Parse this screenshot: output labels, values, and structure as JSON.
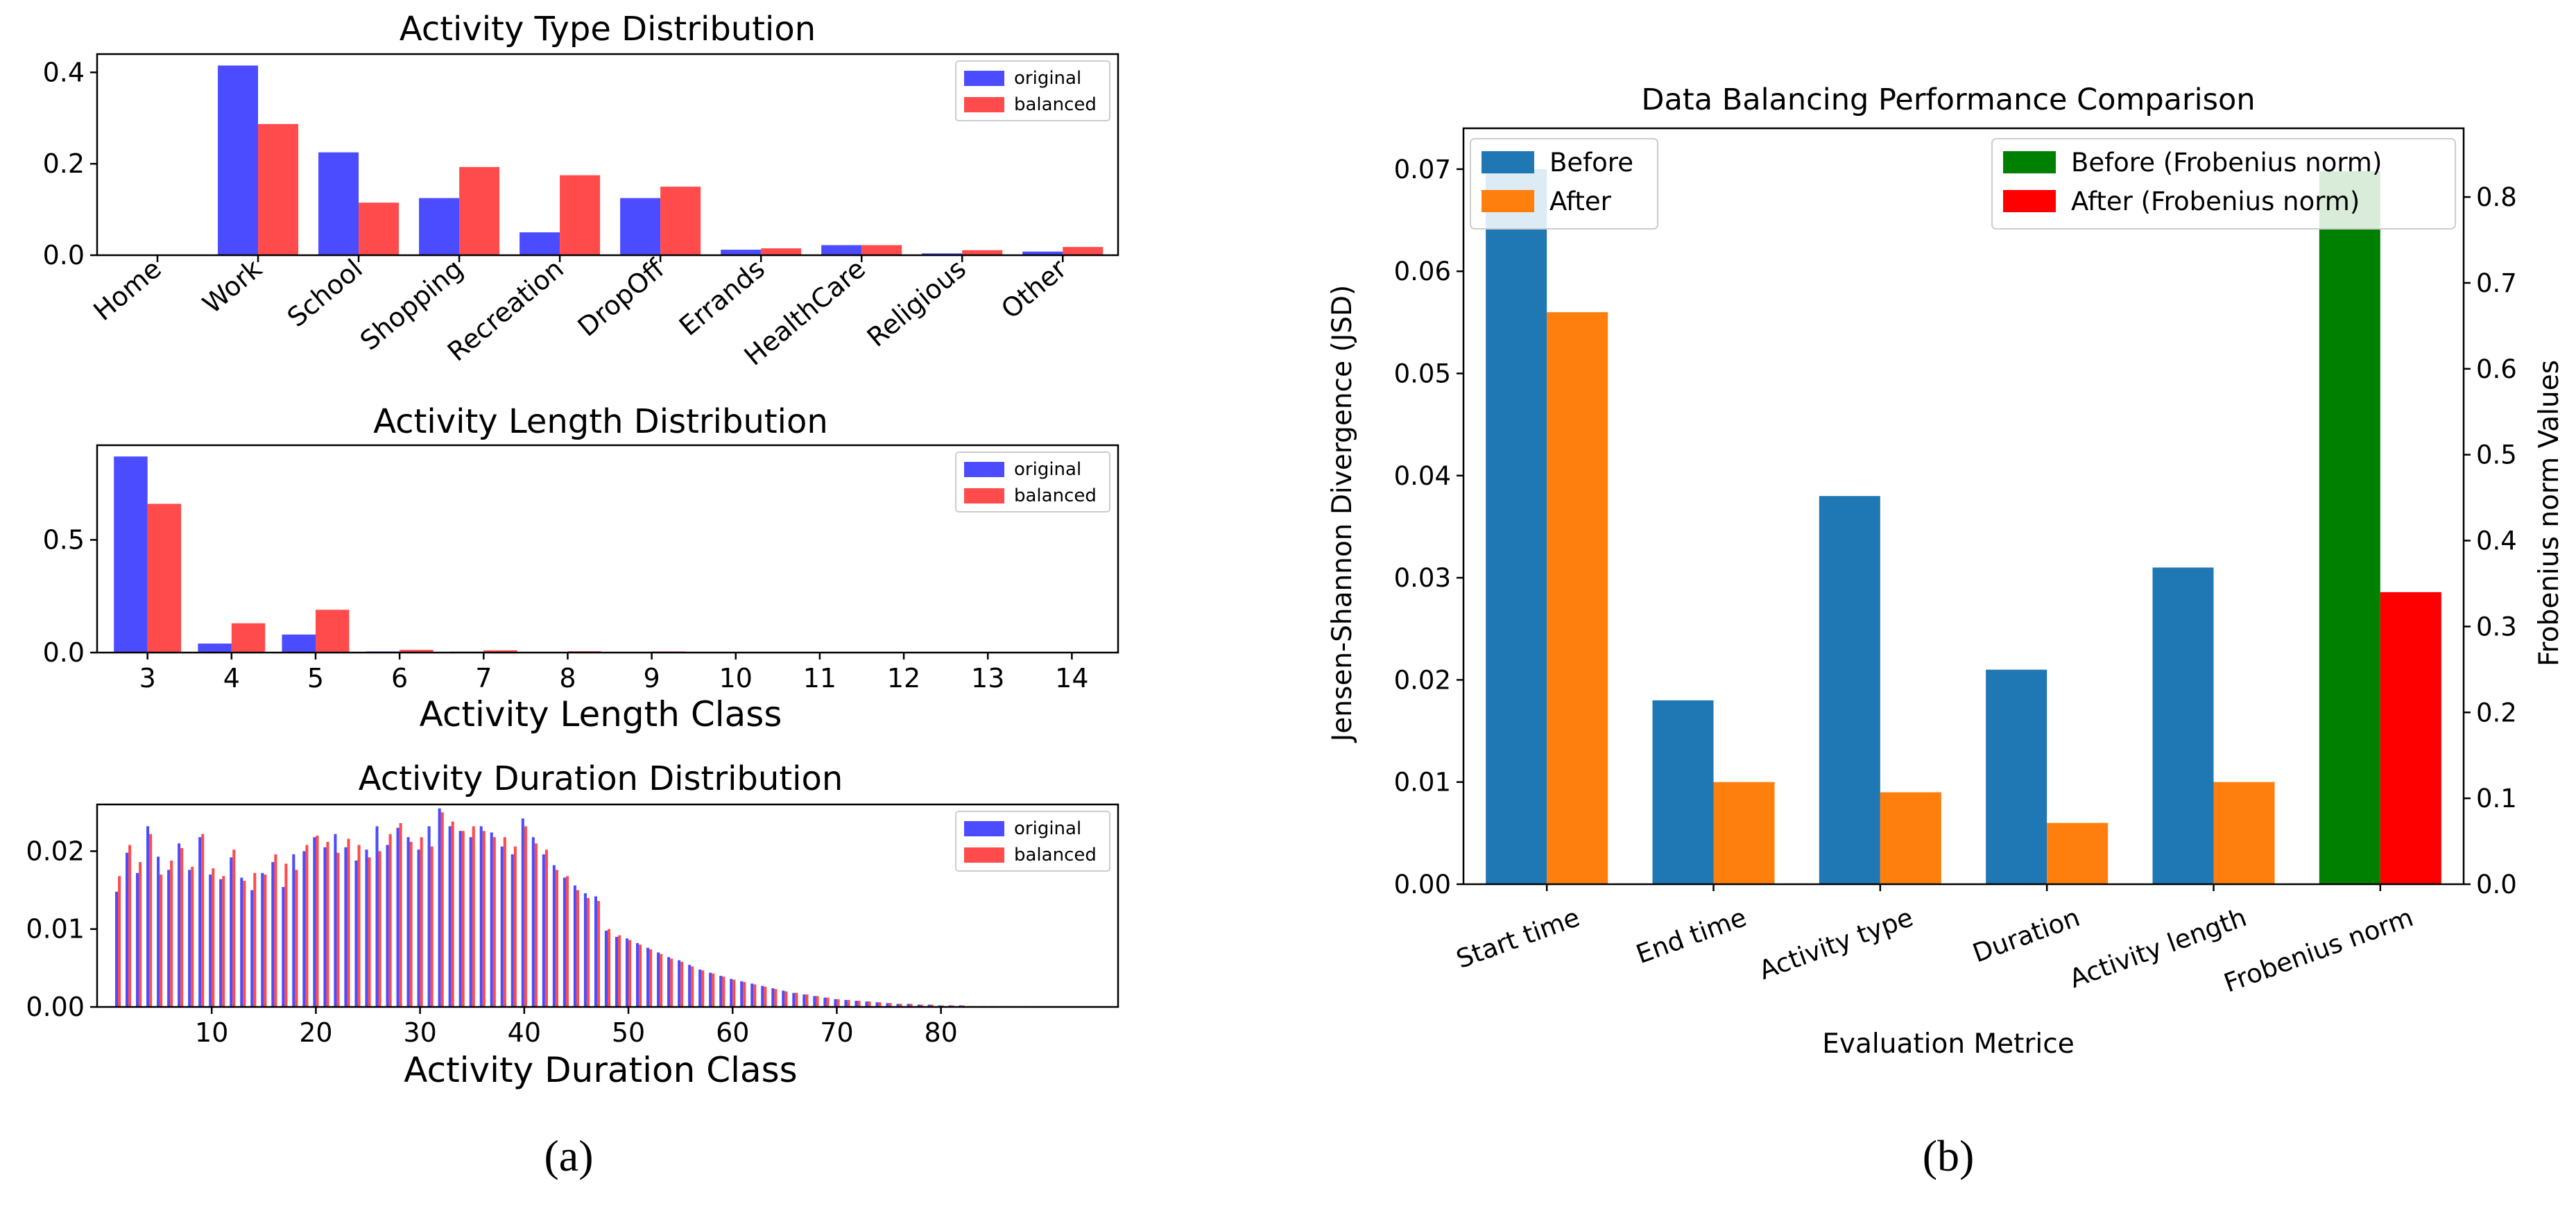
{
  "panel_a": {
    "caption": "(a)",
    "charts": [
      {
        "id": "type",
        "type": "bar",
        "title": "Activity Type Distribution",
        "xlabel": "",
        "ylabel": "",
        "categories": [
          "Home",
          "Work",
          "School",
          "Shopping",
          "Recreation",
          "DropOff",
          "Errands",
          "HealthCare",
          "Religious",
          "Other"
        ],
        "series": [
          {
            "name": "original",
            "color": "#4b4bff",
            "values": [
              0.0,
              0.415,
              0.225,
              0.125,
              0.05,
              0.125,
              0.012,
              0.022,
              0.004,
              0.008
            ]
          },
          {
            "name": "balanced",
            "color": "#ff4b4b",
            "values": [
              0.0,
              0.287,
              0.115,
              0.193,
              0.175,
              0.15,
              0.015,
              0.022,
              0.011,
              0.018
            ]
          }
        ],
        "ylim": [
          0,
          0.44
        ],
        "yticks": [
          0.0,
          0.2,
          0.4
        ],
        "ytick_labels": [
          "0.0",
          "0.2",
          "0.4"
        ],
        "legend": "top-right"
      },
      {
        "id": "length",
        "type": "bar",
        "title": "Activity Length Distribution",
        "xlabel": "Activity Length Class",
        "ylabel": "",
        "categories": [
          "3",
          "4",
          "5",
          "6",
          "7",
          "8",
          "9",
          "10",
          "11",
          "12",
          "13",
          "14"
        ],
        "series": [
          {
            "name": "original",
            "color": "#4b4bff",
            "values": [
              0.87,
              0.04,
              0.08,
              0.005,
              0.004,
              0.002,
              0.003,
              0.0,
              0.0,
              0.0,
              0.0,
              0.0
            ]
          },
          {
            "name": "balanced",
            "color": "#ff4b4b",
            "values": [
              0.66,
              0.13,
              0.19,
              0.012,
              0.01,
              0.006,
              0.005,
              0.0,
              0.0,
              0.0,
              0.0,
              0.0
            ]
          }
        ],
        "ylim": [
          0,
          0.92
        ],
        "yticks": [
          0.0,
          0.5
        ],
        "ytick_labels": [
          "0.0",
          "0.5"
        ],
        "legend": "top-right"
      },
      {
        "id": "duration",
        "type": "bar",
        "title": "Activity Duration Distribution",
        "xlabel": "Activity Duration Class",
        "ylabel": "",
        "x": [
          1,
          2,
          3,
          4,
          5,
          6,
          7,
          8,
          9,
          10,
          11,
          12,
          13,
          14,
          15,
          16,
          17,
          18,
          19,
          20,
          21,
          22,
          23,
          24,
          25,
          26,
          27,
          28,
          29,
          30,
          31,
          32,
          33,
          34,
          35,
          36,
          37,
          38,
          39,
          40,
          41,
          42,
          43,
          44,
          45,
          46,
          47,
          48,
          49,
          50,
          51,
          52,
          53,
          54,
          55,
          56,
          57,
          58,
          59,
          60,
          61,
          62,
          63,
          64,
          65,
          66,
          67,
          68,
          69,
          70,
          71,
          72,
          73,
          74,
          75,
          76,
          77,
          78,
          79,
          80,
          81,
          82,
          83,
          84,
          85,
          86,
          87,
          88
        ],
        "series": [
          {
            "name": "original",
            "color": "#4b4bff",
            "values": [
              0.0148,
              0.0198,
              0.0172,
              0.0232,
              0.0193,
              0.0176,
              0.021,
              0.0176,
              0.0218,
              0.017,
              0.0164,
              0.0192,
              0.0166,
              0.015,
              0.0172,
              0.0186,
              0.0154,
              0.0196,
              0.02,
              0.0218,
              0.0205,
              0.0222,
              0.0205,
              0.0188,
              0.0202,
              0.0232,
              0.0208,
              0.023,
              0.0218,
              0.0202,
              0.0232,
              0.0255,
              0.0232,
              0.0226,
              0.0218,
              0.0232,
              0.0224,
              0.0206,
              0.0196,
              0.0242,
              0.0218,
              0.0196,
              0.0182,
              0.0166,
              0.0156,
              0.0146,
              0.0142,
              0.0098,
              0.009,
              0.0088,
              0.0082,
              0.0076,
              0.007,
              0.0064,
              0.006,
              0.0054,
              0.0048,
              0.0044,
              0.004,
              0.0036,
              0.0033,
              0.003,
              0.0027,
              0.0024,
              0.0021,
              0.0018,
              0.0016,
              0.0014,
              0.0012,
              0.001,
              0.0009,
              0.0008,
              0.0007,
              0.0006,
              0.0005,
              0.0004,
              0.0004,
              0.0003,
              0.0003,
              0.0002,
              0.0002,
              0.0002,
              0.0001,
              0.0001,
              0.0001,
              0.0001,
              0.0001,
              0.0001
            ]
          },
          {
            "name": "balanced",
            "color": "#ff4b4b",
            "values": [
              0.0168,
              0.0208,
              0.0186,
              0.0222,
              0.017,
              0.0188,
              0.0204,
              0.018,
              0.0222,
              0.0178,
              0.0168,
              0.0202,
              0.0162,
              0.0172,
              0.017,
              0.0196,
              0.0184,
              0.0176,
              0.0208,
              0.022,
              0.0212,
              0.0198,
              0.0216,
              0.0208,
              0.0192,
              0.02,
              0.0222,
              0.0236,
              0.0212,
              0.0218,
              0.0206,
              0.025,
              0.0238,
              0.0226,
              0.0232,
              0.0226,
              0.0218,
              0.0218,
              0.0206,
              0.0232,
              0.021,
              0.0202,
              0.0176,
              0.0168,
              0.015,
              0.014,
              0.0136,
              0.01,
              0.0092,
              0.0086,
              0.008,
              0.0074,
              0.0068,
              0.0062,
              0.0058,
              0.0052,
              0.0047,
              0.0043,
              0.0039,
              0.0035,
              0.0032,
              0.0029,
              0.0026,
              0.0023,
              0.002,
              0.0018,
              0.0016,
              0.0014,
              0.0012,
              0.001,
              0.0009,
              0.0008,
              0.0007,
              0.0006,
              0.0005,
              0.0004,
              0.0004,
              0.0003,
              0.0003,
              0.0002,
              0.0002,
              0.0002,
              0.0001,
              0.0001,
              0.0001,
              0.0001,
              0.0001,
              0.0001
            ]
          }
        ],
        "xlim": [
          -1,
          97
        ],
        "xticks": [
          10,
          20,
          30,
          40,
          50,
          60,
          70,
          80
        ],
        "ylim": [
          0,
          0.026
        ],
        "yticks": [
          0.0,
          0.01,
          0.02
        ],
        "ytick_labels": [
          "0.00",
          "0.01",
          "0.02"
        ],
        "legend": "top-right"
      }
    ]
  },
  "panel_b": {
    "caption": "(b)",
    "chart": {
      "type": "bar",
      "title": "Data Balancing Performance Comparison",
      "xlabel": "Evaluation Metrice",
      "ylabel": "Jensen-Shannon Divergence (JSD)",
      "y2label": "Frobenius norm Values",
      "categories": [
        "Start time",
        "End time",
        "Activity type",
        "Duration",
        "Activity length",
        "Frobenius norm"
      ],
      "series": [
        {
          "name": "Before",
          "axis": "left",
          "color": "#1f77b4",
          "values": [
            0.07,
            0.018,
            0.038,
            0.021,
            0.031,
            null
          ]
        },
        {
          "name": "After",
          "axis": "left",
          "color": "#ff7f0e",
          "values": [
            0.056,
            0.01,
            0.009,
            0.006,
            0.01,
            null
          ]
        },
        {
          "name": "Before (Frobenius norm)",
          "axis": "right",
          "color": "#008000",
          "values": [
            null,
            null,
            null,
            null,
            null,
            0.83
          ]
        },
        {
          "name": "After (Frobenius norm)",
          "axis": "right",
          "color": "#ff0000",
          "values": [
            null,
            null,
            null,
            null,
            null,
            0.34
          ]
        }
      ],
      "ylim": [
        0,
        0.074
      ],
      "yticks": [
        0.0,
        0.01,
        0.02,
        0.03,
        0.04,
        0.05,
        0.06,
        0.07
      ],
      "ytick_labels": [
        "0.00",
        "0.01",
        "0.02",
        "0.03",
        "0.04",
        "0.05",
        "0.06",
        "0.07"
      ],
      "y2lim": [
        0,
        0.88
      ],
      "y2ticks": [
        0.0,
        0.1,
        0.2,
        0.3,
        0.4,
        0.5,
        0.6,
        0.7,
        0.8
      ],
      "y2tick_labels": [
        "0.0",
        "0.1",
        "0.2",
        "0.3",
        "0.4",
        "0.5",
        "0.6",
        "0.7",
        "0.8"
      ],
      "legend_left": "top-left",
      "legend_right": "top-right"
    }
  }
}
